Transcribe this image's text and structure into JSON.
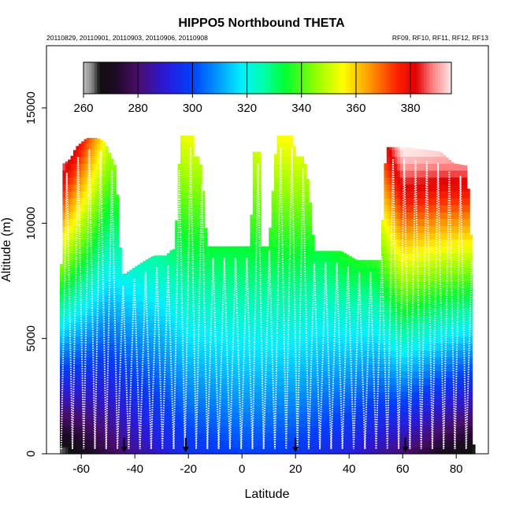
{
  "chart_data": {
    "type": "heatmap",
    "title": "HIPPO5 Northbound THETA",
    "dates_text": "20110829, 20110901, 20110903, 20110906, 20110908",
    "flights_text": "RF09, RF10, RF11, RF12, RF13",
    "xlabel": "Latitude",
    "ylabel": "Altitude (m)",
    "xlim": [
      -73,
      92
    ],
    "ylim": [
      0,
      17700
    ],
    "x_ticks": [
      -60,
      -40,
      -20,
      0,
      20,
      40,
      60,
      80
    ],
    "x_tick_labels": [
      "-60",
      "-40",
      "-20",
      "0",
      "20",
      "40",
      "60",
      "80"
    ],
    "y_ticks": [
      0,
      5000,
      10000,
      15000
    ],
    "y_tick_labels": [
      "0",
      "5000",
      "10000",
      "15000"
    ],
    "colorbar": {
      "range": [
        260,
        395
      ],
      "ticks": [
        260,
        280,
        300,
        320,
        340,
        360,
        380
      ],
      "tick_labels": [
        "260",
        "280",
        "300",
        "320",
        "340",
        "360",
        "380"
      ],
      "stops": [
        {
          "v": 260,
          "c": "#bdbdbd"
        },
        {
          "v": 263,
          "c": "#8a8a8a"
        },
        {
          "v": 266,
          "c": "#111111"
        },
        {
          "v": 272,
          "c": "#1e0a26"
        },
        {
          "v": 280,
          "c": "#4a0d6e"
        },
        {
          "v": 290,
          "c": "#2a1ad8"
        },
        {
          "v": 300,
          "c": "#0040ff"
        },
        {
          "v": 310,
          "c": "#00a0ff"
        },
        {
          "v": 318,
          "c": "#00f0ff"
        },
        {
          "v": 326,
          "c": "#00ffaa"
        },
        {
          "v": 334,
          "c": "#00ff30"
        },
        {
          "v": 345,
          "c": "#90ff00"
        },
        {
          "v": 355,
          "c": "#ffff00"
        },
        {
          "v": 365,
          "c": "#ff9900"
        },
        {
          "v": 375,
          "c": "#ff2200"
        },
        {
          "v": 382,
          "c": "#e00000"
        },
        {
          "v": 388,
          "c": "#ff8080"
        },
        {
          "v": 395,
          "c": "#ffe8e8"
        }
      ]
    },
    "theta_model": {
      "surface_theta_by_lat": [
        [
          -68,
          262
        ],
        [
          -60,
          268
        ],
        [
          -45,
          280
        ],
        [
          -20,
          296
        ],
        [
          0,
          300
        ],
        [
          20,
          298
        ],
        [
          40,
          291
        ],
        [
          60,
          280
        ],
        [
          75,
          270
        ],
        [
          87,
          264
        ]
      ],
      "lapse_K_per_km_by_lat": [
        [
          -68,
          10.2
        ],
        [
          -50,
          5.5
        ],
        [
          -30,
          4.4
        ],
        [
          0,
          3.8
        ],
        [
          30,
          4.4
        ],
        [
          50,
          6.2
        ],
        [
          60,
          8.8
        ],
        [
          87,
          10
        ]
      ]
    },
    "profile_ceiling_m": [
      [
        -68,
        0
      ],
      [
        -67.6,
        7800
      ],
      [
        -66.5,
        12600
      ],
      [
        -64,
        12800
      ],
      [
        -62,
        13300
      ],
      [
        -58,
        13700
      ],
      [
        -54,
        13700
      ],
      [
        -51,
        13500
      ],
      [
        -50,
        13200
      ],
      [
        -47,
        12400
      ],
      [
        -45,
        7800
      ],
      [
        -43.8,
        7800
      ],
      [
        -40,
        8100
      ],
      [
        -36,
        8400
      ],
      [
        -33,
        8600
      ],
      [
        -28,
        8600
      ],
      [
        -27,
        8800
      ],
      [
        -25,
        8900
      ],
      [
        -23,
        13800
      ],
      [
        -18.5,
        13800
      ],
      [
        -18,
        12900
      ],
      [
        -16,
        12900
      ],
      [
        -15,
        12200
      ],
      [
        -13,
        9000
      ],
      [
        1,
        9000
      ],
      [
        3,
        9000
      ],
      [
        4.5,
        13100
      ],
      [
        7,
        13100
      ],
      [
        7.5,
        9000
      ],
      [
        10,
        9000
      ],
      [
        13,
        13800
      ],
      [
        19,
        13800
      ],
      [
        20,
        12900
      ],
      [
        23,
        12900
      ],
      [
        25,
        11600
      ],
      [
        27,
        8800
      ],
      [
        37,
        8800
      ],
      [
        40,
        8600
      ],
      [
        43,
        8400
      ],
      [
        50,
        8400
      ],
      [
        52,
        8400
      ],
      [
        53,
        11900
      ],
      [
        54,
        13300
      ],
      [
        62,
        13300
      ],
      [
        74,
        13100
      ],
      [
        79,
        12600
      ],
      [
        84,
        12500
      ],
      [
        86,
        8500
      ],
      [
        86.5,
        400
      ]
    ],
    "takeoff_latitudes": [
      -44,
      -21,
      20,
      61
    ]
  }
}
